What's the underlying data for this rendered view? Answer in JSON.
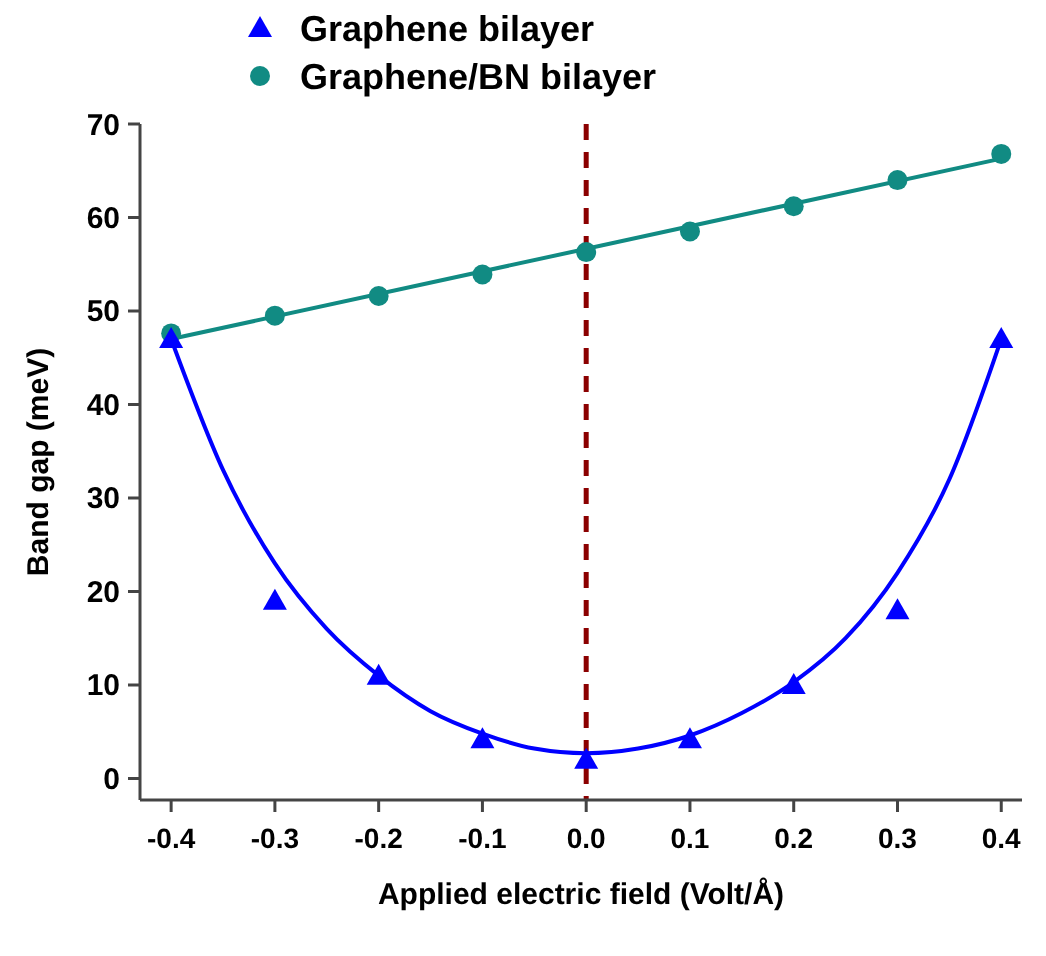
{
  "chart_data": {
    "type": "scatter",
    "xlabel": "Applied electric field (Volt/Å)",
    "ylabel": "Band gap (meV)",
    "x": [
      -0.4,
      -0.3,
      -0.2,
      -0.1,
      0.0,
      0.1,
      0.2,
      0.3,
      0.4
    ],
    "xlim": [
      -0.43,
      0.42
    ],
    "ylim": [
      -2.3,
      70
    ],
    "xticks": [
      {
        "value": -0.4,
        "label": "-0.4"
      },
      {
        "value": -0.3,
        "label": "-0.3"
      },
      {
        "value": -0.2,
        "label": "-0.2"
      },
      {
        "value": -0.1,
        "label": "-0.1"
      },
      {
        "value": 0,
        "label": "0.0"
      },
      {
        "value": 0.1,
        "label": "0.1"
      },
      {
        "value": 0.2,
        "label": "0.2"
      },
      {
        "value": 0.3,
        "label": "0.3"
      },
      {
        "value": 0.4,
        "label": "0.4"
      }
    ],
    "yticks": [
      0,
      10,
      20,
      30,
      40,
      50,
      60,
      70
    ],
    "legend": "top",
    "grid": false,
    "series": [
      {
        "name": "Graphene bilayer",
        "color": "#0000ff",
        "marker": "triangle",
        "values": [
          47,
          19,
          11,
          4.2,
          2,
          4.2,
          10,
          18,
          47
        ]
      },
      {
        "name": "Graphene/BN bilayer",
        "color": "#118b83",
        "marker": "circle",
        "values": [
          47.6,
          49.5,
          51.6,
          53.9,
          56.3,
          58.5,
          61.2,
          64,
          66.8
        ]
      },
      {
        "type": "line",
        "color": "#0000ff",
        "marker": "none",
        "x": [
          -0.4,
          -0.35,
          -0.3,
          -0.25,
          -0.2,
          -0.15,
          -0.1,
          -0.05,
          0,
          0.05,
          0.1,
          0.15,
          0.2,
          0.25,
          0.3,
          0.35,
          0.4
        ],
        "values": [
          47,
          33,
          23,
          16,
          11,
          7.2,
          4.8,
          3.2,
          2.7,
          3.2,
          4.6,
          7,
          10.3,
          15,
          22,
          32,
          47
        ]
      },
      {
        "type": "line",
        "color": "#118b83",
        "marker": "none",
        "x": [
          -0.4,
          0.4
        ],
        "values": [
          47,
          66.3
        ]
      }
    ],
    "ref_lines": [
      {
        "axis": "x",
        "value": 0,
        "color": "#8b0000",
        "line_style": "dashed"
      }
    ]
  }
}
